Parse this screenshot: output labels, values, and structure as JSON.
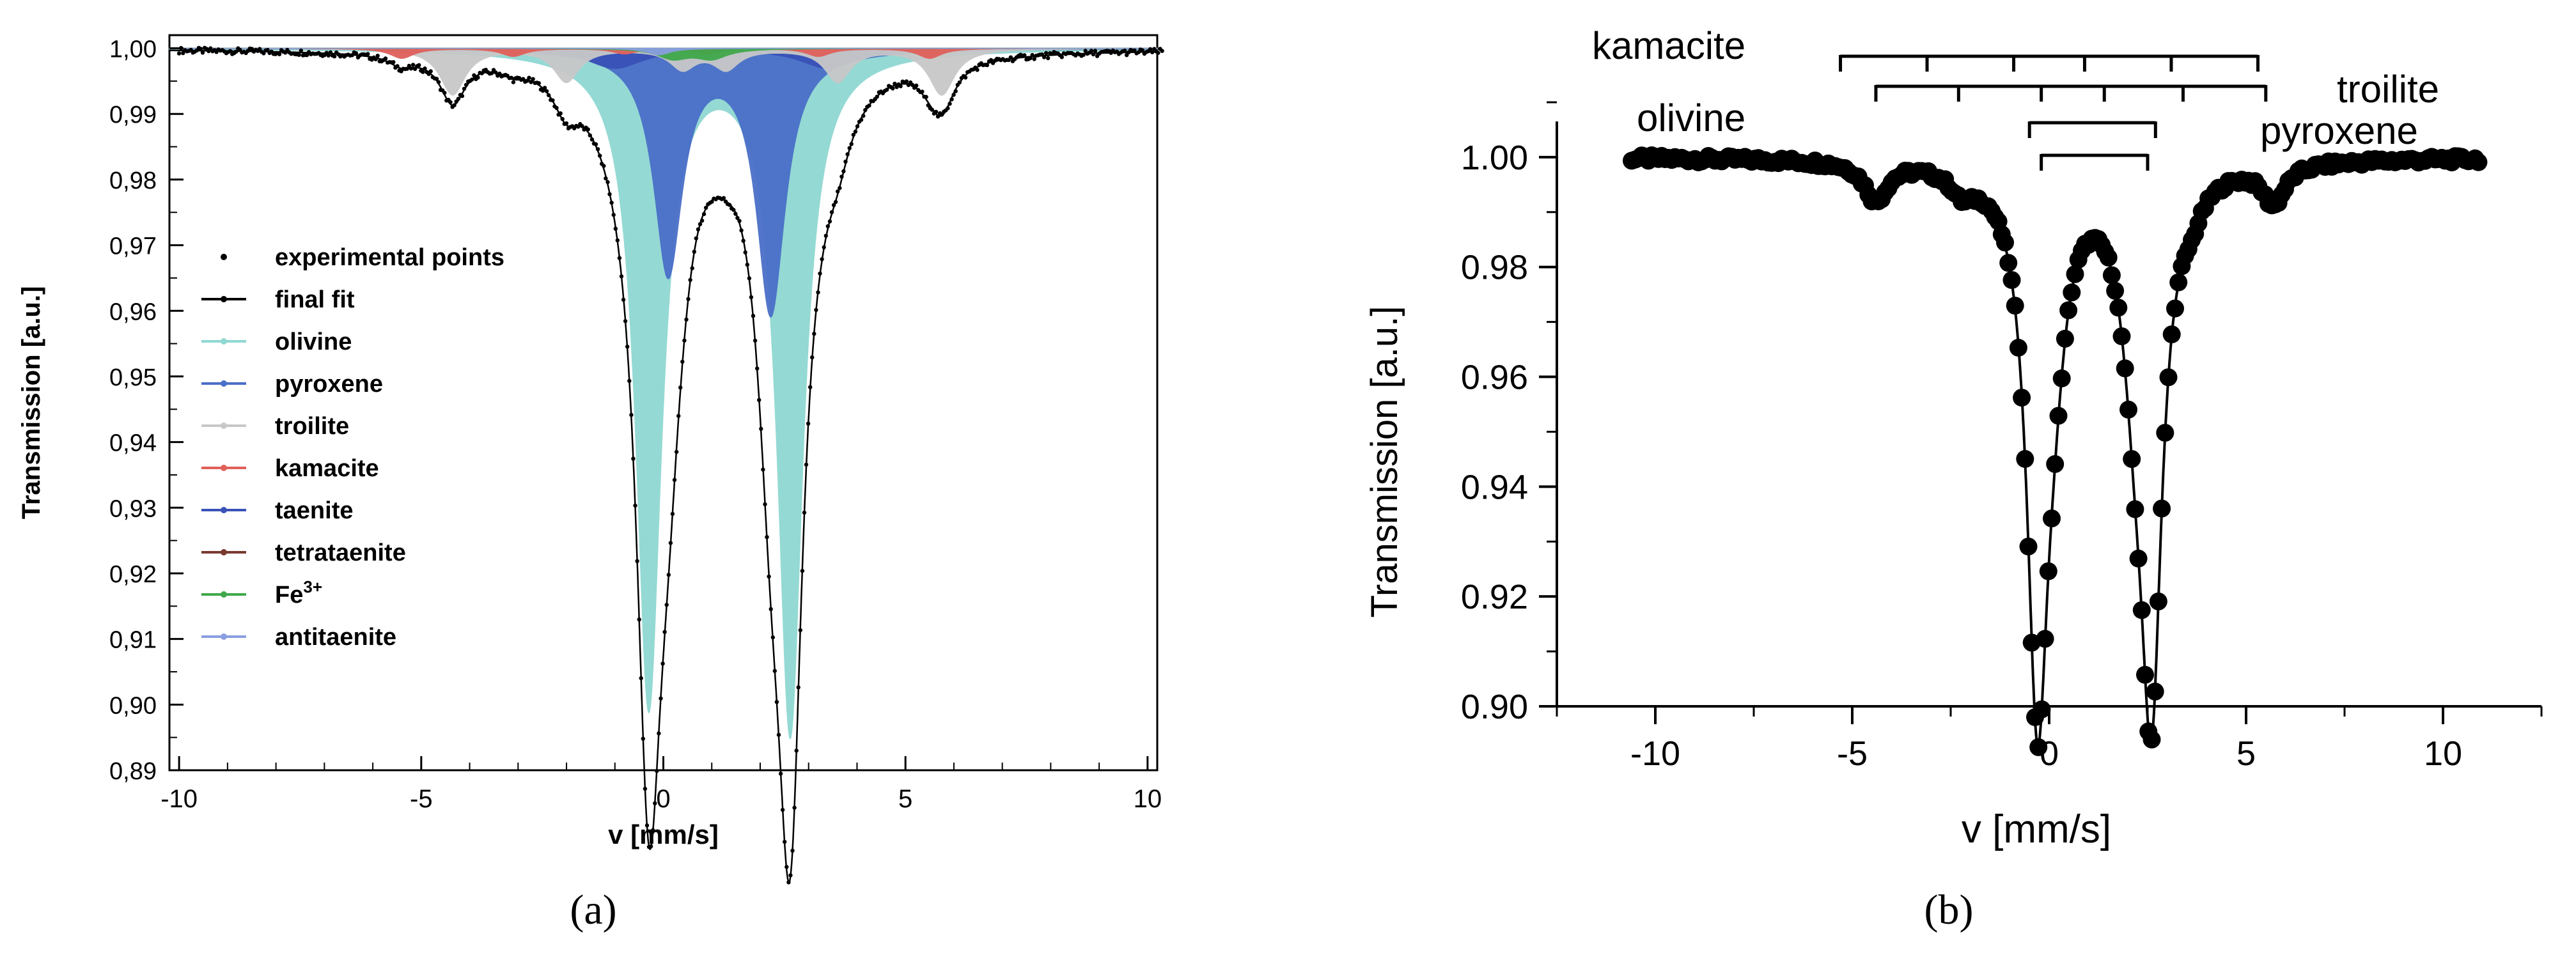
{
  "chart_data": [
    {
      "panel_label": "(a)",
      "type": "line",
      "xlabel": "v [mm/s]",
      "ylabel": "Transmission [a.u.]",
      "xlim": [
        -10.2,
        10.2
      ],
      "ylim": [
        0.89,
        1.002
      ],
      "x_ticks": [
        -10,
        -5,
        0,
        5,
        10
      ],
      "x_tick_labels": [
        "-10",
        "-5",
        "0",
        "5",
        "10"
      ],
      "y_ticks": [
        0.89,
        0.9,
        0.91,
        0.92,
        0.93,
        0.94,
        0.95,
        0.96,
        0.97,
        0.98,
        0.99,
        1.0
      ],
      "y_tick_labels": [
        "0,89",
        "0,90",
        "0,91",
        "0,92",
        "0,93",
        "0,94",
        "0,95",
        "0,96",
        "0,97",
        "0,98",
        "0,99",
        "1,00"
      ],
      "legend": {
        "placement": "center-left",
        "entries": [
          {
            "label": "experimental points",
            "color": "#000000",
            "marker": "dot"
          },
          {
            "label": "final fit",
            "color": "#000000",
            "marker": "line"
          },
          {
            "label": "olivine",
            "color": "#8fd8d2",
            "marker": "line"
          },
          {
            "label": "pyroxene",
            "color": "#4a6fc8",
            "marker": "line"
          },
          {
            "label": "troilite",
            "color": "#c8c8c8",
            "marker": "line"
          },
          {
            "label": "kamacite",
            "color": "#e0605a",
            "marker": "line"
          },
          {
            "label": "taenite",
            "color": "#3a52b8",
            "marker": "line"
          },
          {
            "label": "tetrataenite",
            "color": "#7a3a30",
            "marker": "line"
          },
          {
            "label": "Fe",
            "label_superscript": "3+",
            "color": "#3fa84a",
            "marker": "line"
          },
          {
            "label": "antitaenite",
            "color": "#8a9ee0",
            "marker": "line"
          }
        ]
      },
      "components": [
        {
          "name": "olivine",
          "color": "#8fd8d2",
          "lines": [
            {
              "center": -0.3,
              "width": 0.32,
              "depth": 0.1
            },
            {
              "center": 2.62,
              "width": 0.32,
              "depth": 0.104
            }
          ]
        },
        {
          "name": "pyroxene",
          "color": "#4a6fc8",
          "lines": [
            {
              "center": 0.1,
              "width": 0.36,
              "depth": 0.034
            },
            {
              "center": 2.22,
              "width": 0.36,
              "depth": 0.04
            }
          ]
        },
        {
          "name": "troilite",
          "color": "#c8c8c8",
          "lines": [
            {
              "center": -4.35,
              "width": 0.32,
              "depth": 0.007
            },
            {
              "center": -2.0,
              "width": 0.32,
              "depth": 0.005
            },
            {
              "center": 0.4,
              "width": 0.32,
              "depth": 0.003
            },
            {
              "center": 1.3,
              "width": 0.32,
              "depth": 0.003
            },
            {
              "center": 3.6,
              "width": 0.32,
              "depth": 0.005
            },
            {
              "center": 5.75,
              "width": 0.32,
              "depth": 0.007
            }
          ]
        },
        {
          "name": "kamacite",
          "color": "#e0605a",
          "lines": [
            {
              "center": -5.4,
              "width": 0.3,
              "depth": 0.0015
            },
            {
              "center": -3.1,
              "width": 0.3,
              "depth": 0.0012
            },
            {
              "center": -0.8,
              "width": 0.3,
              "depth": 0.0008
            },
            {
              "center": 0.9,
              "width": 0.3,
              "depth": 0.0008
            },
            {
              "center": 3.2,
              "width": 0.3,
              "depth": 0.0012
            },
            {
              "center": 5.5,
              "width": 0.3,
              "depth": 0.0015
            }
          ]
        },
        {
          "name": "taenite",
          "color": "#3a52b8",
          "lines": [
            {
              "center": -1.0,
              "width": 0.7,
              "depth": 0.003
            },
            {
              "center": 3.4,
              "width": 0.7,
              "depth": 0.003
            }
          ]
        },
        {
          "name": "Fe3+",
          "color": "#3fa84a",
          "lines": [
            {
              "center": 0.2,
              "width": 0.4,
              "depth": 0.0015
            },
            {
              "center": 1.0,
              "width": 0.4,
              "depth": 0.0015
            }
          ]
        },
        {
          "name": "antitaenite",
          "color": "#8a9ee0",
          "lines": [
            {
              "center": -0.1,
              "width": 0.3,
              "depth": 0.001
            }
          ]
        }
      ]
    },
    {
      "panel_label": "(b)",
      "type": "line",
      "xlabel": "v [mm/s]",
      "ylabel": "Transmission [a.u.]",
      "xlim": [
        -12.5,
        12.5
      ],
      "ylim": [
        0.9,
        1.01
      ],
      "x_ticks": [
        -10,
        -5,
        0,
        5,
        10
      ],
      "x_tick_labels": [
        "-10",
        "-5",
        "0",
        "5",
        "10"
      ],
      "y_ticks": [
        0.9,
        0.92,
        0.94,
        0.96,
        0.98,
        1.0
      ],
      "y_tick_labels": [
        "0.90",
        "0.92",
        "0.94",
        "0.96",
        "0.98",
        "1.00"
      ],
      "series": [
        {
          "color": "#000000",
          "lines": [
            {
              "center": -0.3,
              "width": 0.32,
              "depth": 0.094
            },
            {
              "center": 2.6,
              "width": 0.32,
              "depth": 0.09
            },
            {
              "center": 0.1,
              "width": 0.4,
              "depth": 0.022
            },
            {
              "center": 2.2,
              "width": 0.4,
              "depth": 0.028
            },
            {
              "center": -4.4,
              "width": 0.35,
              "depth": 0.007
            },
            {
              "center": -2.2,
              "width": 0.35,
              "depth": 0.004
            },
            {
              "center": 3.6,
              "width": 0.35,
              "depth": 0.004
            },
            {
              "center": 5.7,
              "width": 0.35,
              "depth": 0.007
            }
          ]
        }
      ],
      "annotations": [
        {
          "text": "kamacite",
          "lines": [
            -5.3,
            -3.1,
            -0.9,
            0.9,
            3.1,
            5.3
          ]
        },
        {
          "text": "olivine",
          "lines": [
            -0.5,
            2.7
          ]
        },
        {
          "text": "troilite",
          "lines": [
            -4.4,
            -2.3,
            -0.2,
            1.4,
            3.4,
            5.5
          ]
        },
        {
          "text": "pyroxene",
          "lines": [
            -0.2,
            2.5
          ]
        }
      ]
    }
  ]
}
